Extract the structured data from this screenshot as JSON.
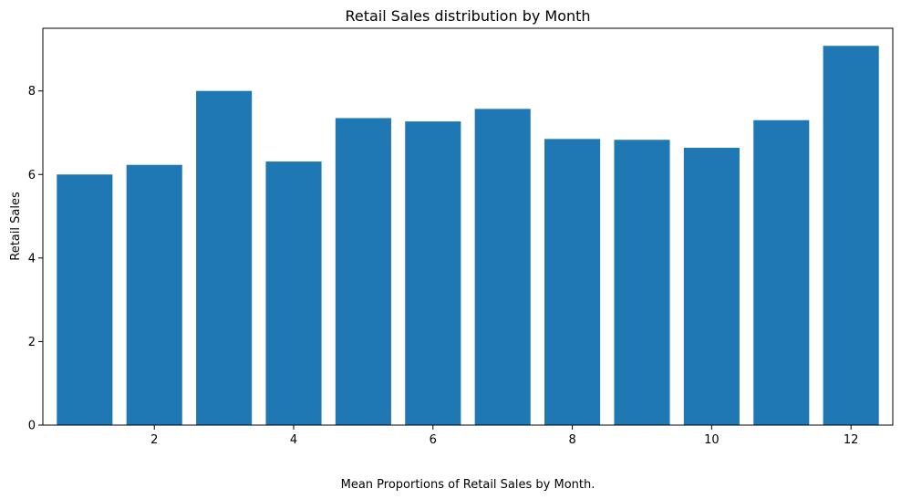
{
  "chart_data": {
    "type": "bar",
    "title": "Retail Sales distribution by Month",
    "xlabel": "Mean Proportions of Retail Sales by Month.",
    "ylabel": "Retail Sales",
    "categories": [
      1,
      2,
      3,
      4,
      5,
      6,
      7,
      8,
      9,
      10,
      11,
      12
    ],
    "values": [
      6.0,
      6.23,
      8.0,
      6.31,
      7.35,
      7.27,
      7.57,
      6.85,
      6.83,
      6.64,
      7.3,
      9.08
    ],
    "xlim": [
      0.4,
      12.6
    ],
    "ylim": [
      0,
      9.5
    ],
    "xticks": [
      2,
      4,
      6,
      8,
      10,
      12
    ],
    "yticks": [
      0,
      2,
      4,
      6,
      8
    ],
    "bar_color": "#1f77b4",
    "grid": false,
    "legend": "none"
  }
}
